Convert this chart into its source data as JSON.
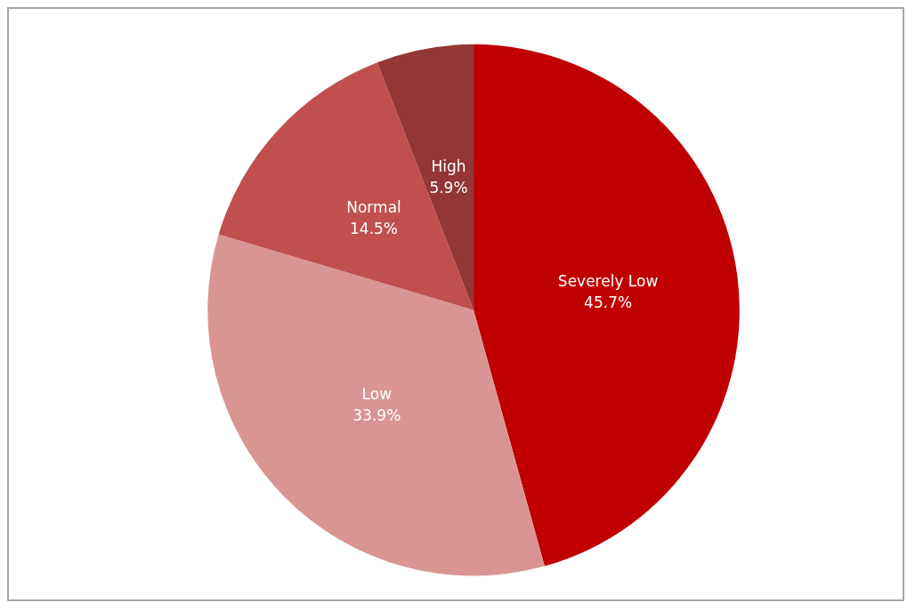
{
  "chart_data": {
    "type": "pie",
    "categories": [
      "Severely Low",
      "Low",
      "Normal",
      "High"
    ],
    "values": [
      45.7,
      33.9,
      14.5,
      5.9
    ],
    "value_labels": [
      "45.7%",
      "33.9%",
      "14.5%",
      "5.9%"
    ],
    "colors": [
      "#c00000",
      "#d99594",
      "#c0504d",
      "#943634"
    ],
    "legend": false
  }
}
